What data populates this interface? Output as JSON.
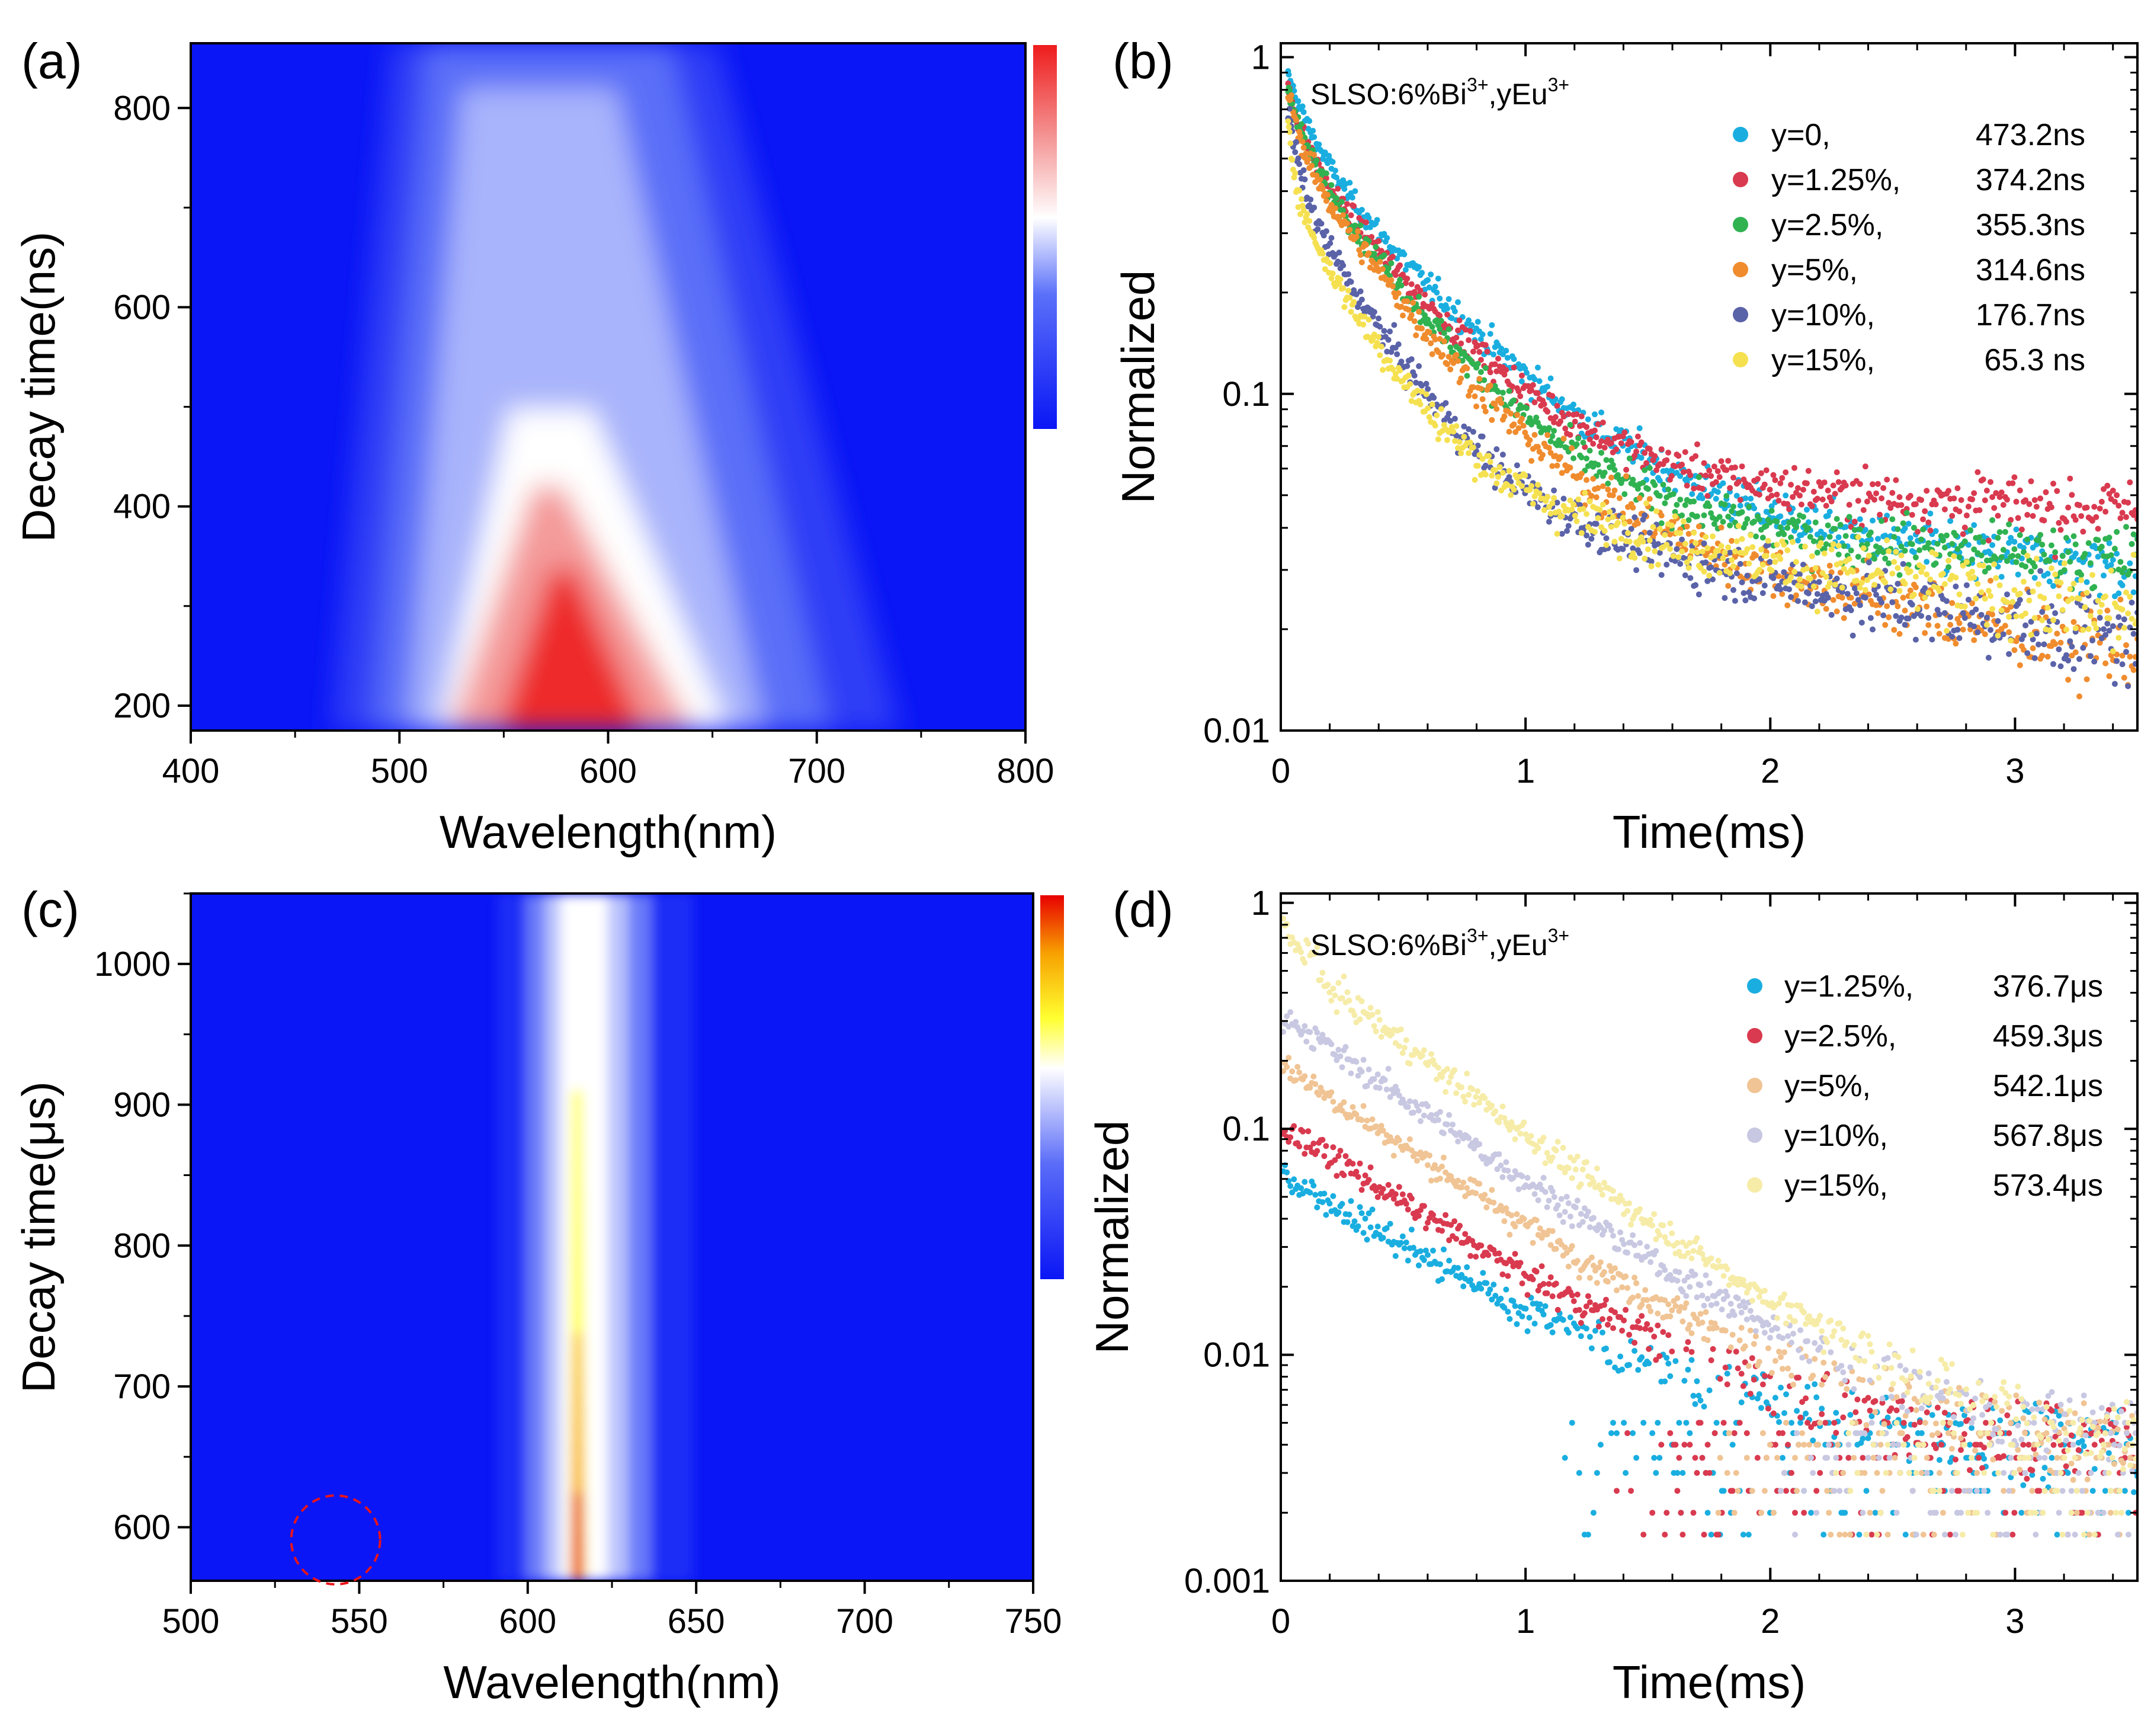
{
  "colors": {
    "heat_a": [
      "#0a16f5",
      "#3a4ef8",
      "#8fa0fb",
      "#f4f4ff",
      "#f58a8a",
      "#ee2a2a"
    ],
    "heat_c": [
      "#0a16f5",
      "#2b3cf7",
      "#9aa7fb",
      "#ffffff",
      "#ffff00",
      "#f7a000",
      "#e80000"
    ],
    "circle": "#e8141c"
  },
  "chart_data": [
    {
      "panel": "(a)",
      "type": "heatmap",
      "xlabel": "Wavelength(nm)",
      "ylabel": "Decay time(ns)",
      "xlim": [
        400,
        800
      ],
      "ylim": [
        175,
        865
      ],
      "xticks": [
        "400",
        "500",
        "600",
        "700",
        "800"
      ],
      "yticks": [
        "200",
        "400",
        "600",
        "800"
      ],
      "description_peak": {
        "center_nm": 527,
        "max_intensity_at_ns": 200
      }
    },
    {
      "panel": "(b)",
      "type": "scatter",
      "xscale": "linear",
      "yscale": "log",
      "xlabel": "Time(ms)",
      "ylabel": "Normalized",
      "xlim": [
        0,
        3.5
      ],
      "ylim": [
        0.01,
        1.1
      ],
      "xticks": [
        "0",
        "1",
        "2",
        "3"
      ],
      "yticks": [
        "1",
        "0.1",
        "0.01"
      ],
      "annotation": {
        "main": "SLSO:6%Bi",
        "sup1": "3+",
        "mid": ",yEu",
        "sup2": "3+"
      },
      "series": [
        {
          "name": "y=0,",
          "value": "473.2ns",
          "color": "#1aaee0",
          "end": 0.03,
          "fast": 0.4,
          "tf": 0.1,
          "tm": 0.5,
          "ts": 12.0,
          "noise": 0.07
        },
        {
          "name": "y=1.25%,",
          "value": "374.2ns",
          "color": "#d93a4f",
          "end": 0.045,
          "fast": 0.4,
          "tf": 0.06,
          "tm": 0.42,
          "ts": 20.0,
          "noise": 0.07
        },
        {
          "name": "y=2.5%,",
          "value": "355.3ns",
          "color": "#30b251",
          "end": 0.032,
          "fast": 0.4,
          "tf": 0.06,
          "tm": 0.4,
          "ts": 12.0,
          "noise": 0.07
        },
        {
          "name": "y=5%,",
          "value": "314.6ns",
          "color": "#f08c2e",
          "end": 0.017,
          "fast": 0.45,
          "tf": 0.05,
          "tm": 0.38,
          "ts": 3.2,
          "noise": 0.09
        },
        {
          "name": "y=10%,",
          "value": "176.7ns",
          "color": "#5a62a8",
          "end": 0.018,
          "fast": 0.55,
          "tf": 0.04,
          "tm": 0.3,
          "ts": 3.5,
          "noise": 0.09
        },
        {
          "name": "y=15%,",
          "value": "65.3 ns",
          "color": "#f5e150",
          "end": 0.022,
          "fast": 0.6,
          "tf": 0.03,
          "tm": 0.28,
          "ts": 4.0,
          "noise": 0.09
        }
      ]
    },
    {
      "panel": "(c)",
      "type": "heatmap",
      "xlabel": "Wavelength(nm)",
      "ylabel": "Decay time(μs)",
      "xlim": [
        500,
        750
      ],
      "ylim": [
        562,
        1050
      ],
      "xticks": [
        "500",
        "550",
        "600",
        "650",
        "700",
        "750"
      ],
      "yticks": [
        "600",
        "700",
        "800",
        "900",
        "1000"
      ],
      "description_peak": {
        "center_nm": 611,
        "max_intensity_at_us": 600
      },
      "circle": {
        "center_nm": 543,
        "center_us": 591,
        "radius_nm": 10
      }
    },
    {
      "panel": "(d)",
      "type": "scatter",
      "xscale": "linear",
      "yscale": "log",
      "xlabel": "Time(ms)",
      "ylabel": "Normalized",
      "xlim": [
        0,
        3.5
      ],
      "ylim": [
        0.001,
        1.1
      ],
      "xticks": [
        "0",
        "1",
        "2",
        "3"
      ],
      "yticks": [
        "1",
        "0.1",
        "0.01",
        "0.001"
      ],
      "annotation": {
        "main": "SLSO:6%Bi",
        "sup1": "3+",
        "mid": ",yEu",
        "sup2": "3+"
      },
      "series": [
        {
          "name": "y=1.25%,",
          "value": "376.7μs",
          "color": "#1aaee0",
          "start": 0.06,
          "tau": 0.62,
          "noise": 0.12
        },
        {
          "name": "y=2.5%,",
          "value": "459.3μs",
          "color": "#d93a4f",
          "start": 0.1,
          "tau": 0.6,
          "noise": 0.1
        },
        {
          "name": "y=5%,",
          "value": "542.1μs",
          "color": "#f0c494",
          "start": 0.19,
          "tau": 0.58,
          "noise": 0.1
        },
        {
          "name": "y=10%,",
          "value": "567.8μs",
          "color": "#c8c8e2",
          "start": 0.32,
          "tau": 0.57,
          "noise": 0.1
        },
        {
          "name": "y=15%,",
          "value": "573.4μs",
          "color": "#f6eca8",
          "start": 0.6,
          "tau": 0.53,
          "noise": 0.1
        }
      ]
    }
  ]
}
